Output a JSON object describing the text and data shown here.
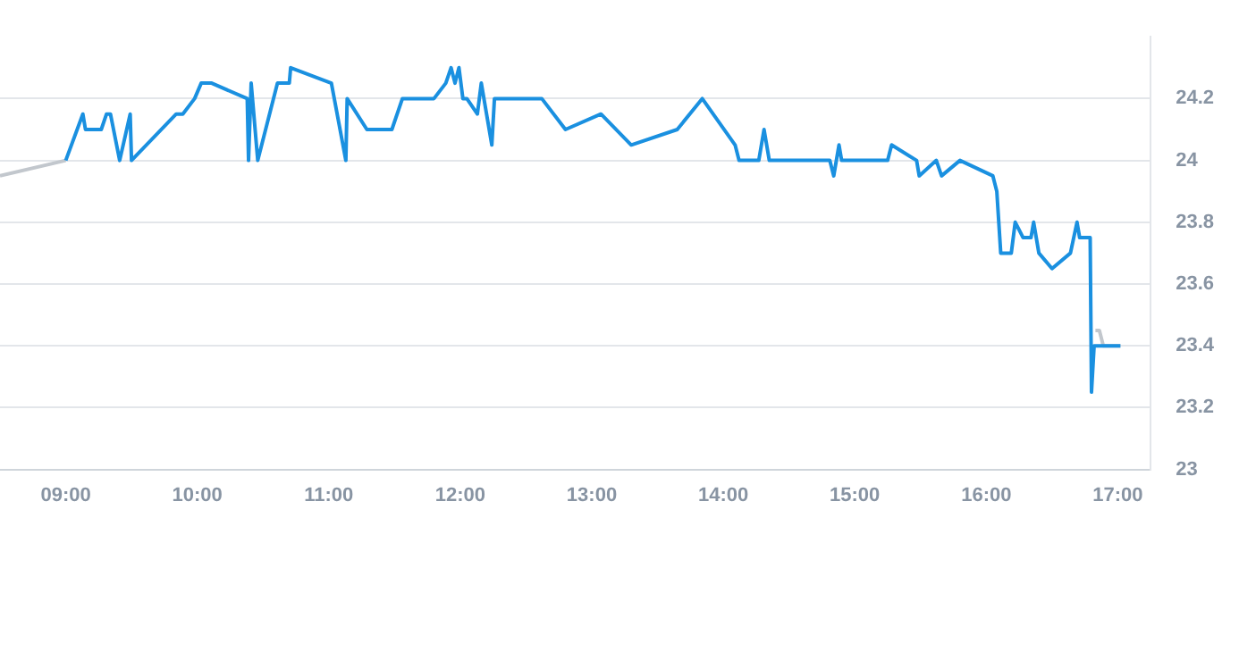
{
  "chart_data": {
    "type": "line",
    "xlim": [
      8.5,
      17.25
    ],
    "ylim": [
      23,
      24.4
    ],
    "xticks": [
      {
        "value": 9,
        "label": "09:00"
      },
      {
        "value": 10,
        "label": "10:00"
      },
      {
        "value": 11,
        "label": "11:00"
      },
      {
        "value": 12,
        "label": "12:00"
      },
      {
        "value": 13,
        "label": "13:00"
      },
      {
        "value": 14,
        "label": "14:00"
      },
      {
        "value": 15,
        "label": "15:00"
      },
      {
        "value": 16,
        "label": "16:00"
      },
      {
        "value": 17,
        "label": "17:00"
      }
    ],
    "yticks": [
      23,
      23.2,
      23.4,
      23.6,
      23.8,
      24,
      24.2
    ],
    "grid": "y",
    "legend": false,
    "marker": "none",
    "line_style": "solid",
    "series": [
      {
        "color": "#1a90e0",
        "x": [
          9.0,
          9.13,
          9.15,
          9.27,
          9.31,
          9.34,
          9.41,
          9.49,
          9.5,
          9.84,
          9.89,
          9.98,
          10.03,
          10.11,
          10.38,
          10.39,
          10.41,
          10.46,
          10.61,
          10.7,
          10.71,
          11.02,
          11.13,
          11.14,
          11.29,
          11.48,
          11.56,
          11.8,
          11.89,
          11.93,
          11.96,
          11.99,
          12.02,
          12.05,
          12.13,
          12.16,
          12.24,
          12.26,
          12.62,
          12.8,
          13.07,
          13.3,
          13.65,
          13.84,
          14.09,
          14.12,
          14.27,
          14.31,
          14.35,
          14.81,
          14.84,
          14.88,
          14.9,
          15.25,
          15.28,
          15.47,
          15.49,
          15.62,
          15.66,
          15.8,
          16.05,
          16.08,
          16.11,
          16.19,
          16.22,
          16.28,
          16.34,
          16.36,
          16.4,
          16.5,
          16.64,
          16.69,
          16.71,
          16.79,
          16.8,
          16.82,
          17.02
        ],
        "values": [
          24.0,
          24.15,
          24.1,
          24.1,
          24.15,
          24.15,
          24.0,
          24.15,
          24.0,
          24.15,
          24.15,
          24.2,
          24.25,
          24.25,
          24.2,
          24.0,
          24.25,
          24.0,
          24.25,
          24.25,
          24.3,
          24.25,
          24.0,
          24.2,
          24.1,
          24.1,
          24.2,
          24.2,
          24.25,
          24.3,
          24.25,
          24.3,
          24.2,
          24.2,
          24.15,
          24.25,
          24.05,
          24.2,
          24.2,
          24.1,
          24.15,
          24.05,
          24.1,
          24.2,
          24.05,
          24.0,
          24.0,
          24.1,
          24.0,
          24.0,
          23.95,
          24.05,
          24.0,
          24.0,
          24.05,
          24.0,
          23.95,
          24.0,
          23.95,
          24.0,
          23.95,
          23.9,
          23.7,
          23.7,
          23.8,
          23.75,
          23.75,
          23.8,
          23.7,
          23.65,
          23.7,
          23.8,
          23.75,
          23.75,
          23.25,
          23.4,
          23.4
        ]
      },
      {
        "color": "#c2c7cd",
        "x": [
          8.5,
          9.0
        ],
        "values": [
          23.95,
          24.0
        ]
      },
      {
        "color": "#c2c7cd",
        "x": [
          16.83,
          16.86,
          16.89,
          17.02
        ],
        "values": [
          23.45,
          23.45,
          23.4,
          23.4
        ]
      }
    ]
  }
}
